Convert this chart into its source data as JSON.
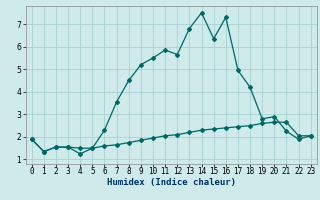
{
  "xlabel": "Humidex (Indice chaleur)",
  "ylabel": "",
  "background_color": "#ceeaea",
  "grid_color": "#a8d0d0",
  "line_color": "#006666",
  "x_ticks": [
    0,
    1,
    2,
    3,
    4,
    5,
    6,
    7,
    8,
    9,
    10,
    11,
    12,
    13,
    14,
    15,
    16,
    17,
    18,
    19,
    20,
    21,
    22,
    23
  ],
  "ylim": [
    0.8,
    7.8
  ],
  "xlim": [
    -0.5,
    23.5
  ],
  "line1_x": [
    0,
    1,
    2,
    3,
    4,
    5,
    6,
    7,
    8,
    9,
    10,
    11,
    12,
    13,
    14,
    15,
    16,
    17,
    18,
    19,
    20,
    21,
    22,
    23
  ],
  "line1_y": [
    1.9,
    1.35,
    1.55,
    1.55,
    1.25,
    1.5,
    2.3,
    3.55,
    4.5,
    5.2,
    5.5,
    5.85,
    5.65,
    6.8,
    7.5,
    6.35,
    7.3,
    4.95,
    4.2,
    2.8,
    2.9,
    2.25,
    1.9,
    2.05
  ],
  "line2_x": [
    0,
    1,
    2,
    3,
    4,
    5,
    6,
    7,
    8,
    9,
    10,
    11,
    12,
    13,
    14,
    15,
    16,
    17,
    18,
    19,
    20,
    21,
    22,
    23
  ],
  "line2_y": [
    1.9,
    1.35,
    1.55,
    1.55,
    1.5,
    1.5,
    1.6,
    1.65,
    1.75,
    1.85,
    1.95,
    2.05,
    2.1,
    2.2,
    2.3,
    2.35,
    2.4,
    2.45,
    2.5,
    2.6,
    2.65,
    2.65,
    2.05,
    2.05
  ],
  "tick_fontsize": 5.5,
  "xlabel_fontsize": 6.5,
  "xlabel_color": "#003366"
}
